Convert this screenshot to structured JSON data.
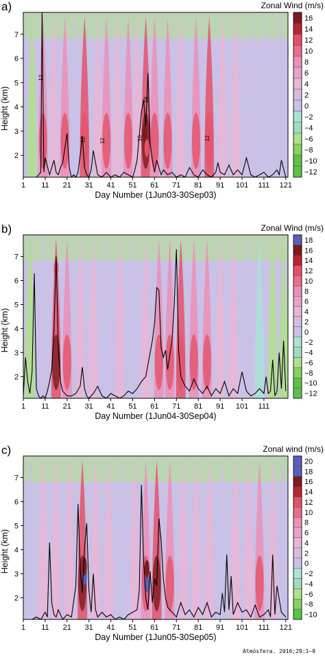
{
  "palette": {
    "green_dark": "#5cc24a",
    "green": "#86d35f",
    "green_light": "#b0e18a",
    "teal": "#a9e2d6",
    "lavender": "#c9c1e6",
    "pink_light": "#e7b6d5",
    "pink": "#ec8fb7",
    "red": "#e4526a",
    "dark_red": "#7e1a1f",
    "blue": "#5b5fb8",
    "line": "#000000"
  },
  "chart_data": [
    {
      "type": "heatmap",
      "panel_label": "a)",
      "title": "Zonal Wind (m/s)",
      "xlabel": "Day Number (1Jun03-30Sep03)",
      "ylabel": "Height (km)",
      "xlim": [
        1,
        122
      ],
      "ylim": [
        1.1,
        7.9
      ],
      "xticks": [
        "1",
        "11",
        "21",
        "31",
        "41",
        "51",
        "61",
        "71",
        "81",
        "91",
        "101",
        "111",
        "121"
      ],
      "yticks": [
        "2",
        "3",
        "4",
        "5",
        "6",
        "7"
      ],
      "colorbar_ticks": [
        "16",
        "14",
        "12",
        "10",
        "8",
        "6",
        "4",
        "2",
        "0",
        "−2",
        "−4",
        "−6",
        "−8",
        "−10",
        "−12"
      ],
      "contour_labels": [
        {
          "text": "12",
          "x": 10,
          "y": 5.2
        },
        {
          "text": "12",
          "x": 29,
          "y": 2.65
        },
        {
          "text": "12",
          "x": 38,
          "y": 2.6
        },
        {
          "text": "16",
          "x": 55,
          "y": 2.7
        },
        {
          "text": "16",
          "x": 58,
          "y": 4.3
        },
        {
          "text": "12",
          "x": 86,
          "y": 2.7
        }
      ],
      "wind_bands": [
        {
          "x": 5,
          "value": -6
        },
        {
          "x": 10,
          "value": 10
        },
        {
          "x": 15,
          "value": 4
        },
        {
          "x": 20,
          "value": 8
        },
        {
          "x": 25,
          "value": 2
        },
        {
          "x": 29,
          "value": 11
        },
        {
          "x": 35,
          "value": 4
        },
        {
          "x": 39,
          "value": 10
        },
        {
          "x": 44,
          "value": 6
        },
        {
          "x": 49,
          "value": 10
        },
        {
          "x": 53,
          "value": 4
        },
        {
          "x": 57,
          "value": 13
        },
        {
          "x": 61,
          "value": 8
        },
        {
          "x": 67,
          "value": 10
        },
        {
          "x": 73,
          "value": 6
        },
        {
          "x": 80,
          "value": 8
        },
        {
          "x": 86,
          "value": 11
        },
        {
          "x": 92,
          "value": 6
        },
        {
          "x": 98,
          "value": 4
        },
        {
          "x": 105,
          "value": 2
        },
        {
          "x": 112,
          "value": 0
        },
        {
          "x": 118,
          "value": 2
        }
      ],
      "max_spots": [
        {
          "x": 56.5,
          "y": 2.9,
          "value": 16
        },
        {
          "x": 57.5,
          "y": 2.3,
          "value": 14
        }
      ],
      "rain_line": {
        "x": [
          1,
          3,
          5,
          7,
          8,
          9,
          9.6,
          10.4,
          11,
          13,
          14,
          15,
          16,
          17,
          18,
          19,
          21,
          22,
          23,
          24,
          25,
          26,
          27,
          28,
          29,
          30,
          31,
          32,
          33,
          35,
          37,
          39,
          41,
          43,
          45,
          47,
          49,
          51,
          52,
          53,
          54,
          55,
          56,
          57,
          58,
          59,
          60,
          61,
          62,
          63,
          64,
          65,
          67,
          69,
          71,
          73,
          75,
          77,
          79,
          81,
          83,
          85,
          87,
          89,
          90,
          91,
          93,
          95,
          97,
          99,
          101,
          103,
          105,
          107,
          109,
          111,
          113,
          115,
          117,
          118,
          119,
          121
        ],
        "y": [
          1.1,
          1.1,
          1.1,
          1.1,
          1.2,
          1.3,
          7.9,
          1.3,
          1.9,
          1.2,
          1.5,
          1.8,
          1.3,
          1.2,
          1.5,
          1.7,
          2.9,
          1.5,
          1.1,
          1.2,
          1.1,
          1.3,
          2.0,
          2.8,
          1.5,
          1.2,
          1.1,
          1.4,
          2.2,
          1.2,
          1.1,
          1.3,
          1.1,
          1.2,
          1.1,
          1.3,
          1.2,
          1.1,
          1.4,
          1.8,
          2.8,
          3.8,
          4.3,
          3.2,
          5.4,
          2.5,
          1.8,
          1.3,
          1.8,
          1.5,
          1.2,
          1.4,
          1.2,
          1.3,
          1.1,
          1.2,
          1.1,
          1.5,
          1.2,
          1.1,
          1.4,
          1.2,
          1.1,
          1.3,
          1.7,
          1.3,
          1.2,
          1.6,
          1.2,
          1.4,
          1.2,
          1.9,
          1.2,
          1.1,
          1.2,
          1.3,
          1.1,
          1.2,
          1.4,
          1.2,
          1.8,
          1.1
        ]
      }
    },
    {
      "type": "heatmap",
      "panel_label": "b)",
      "title": "Zonal Wind (m/s)",
      "xlabel": "Day Number (1Jun04-30Sep04)",
      "ylabel": "Height (km)",
      "xlim": [
        1,
        122
      ],
      "ylim": [
        1.1,
        7.9
      ],
      "xticks": [
        "1",
        "11",
        "21",
        "31",
        "41",
        "51",
        "61",
        "71",
        "81",
        "91",
        "101",
        "111"
      ],
      "yticks": [
        "2",
        "3",
        "4",
        "5",
        "6",
        "7"
      ],
      "colorbar_ticks": [
        "18",
        "16",
        "14",
        "12",
        "10",
        "8",
        "6",
        "4",
        "2",
        "0",
        "−2",
        "−4",
        "−6",
        "−8",
        "−10",
        "−12"
      ],
      "contour_labels": [],
      "wind_bands": [
        {
          "x": 4,
          "value": -4
        },
        {
          "x": 10,
          "value": 2
        },
        {
          "x": 16,
          "value": 13
        },
        {
          "x": 21,
          "value": 8
        },
        {
          "x": 27,
          "value": 4
        },
        {
          "x": 33,
          "value": 6
        },
        {
          "x": 39,
          "value": 2
        },
        {
          "x": 45,
          "value": 4
        },
        {
          "x": 51,
          "value": 2
        },
        {
          "x": 57,
          "value": 6
        },
        {
          "x": 63,
          "value": 8
        },
        {
          "x": 68,
          "value": 10
        },
        {
          "x": 73,
          "value": 11
        },
        {
          "x": 79,
          "value": 10
        },
        {
          "x": 85,
          "value": 8
        },
        {
          "x": 91,
          "value": 6
        },
        {
          "x": 97,
          "value": 4
        },
        {
          "x": 103,
          "value": 0
        },
        {
          "x": 109,
          "value": -2
        },
        {
          "x": 115,
          "value": -4
        },
        {
          "x": 120,
          "value": -6
        }
      ],
      "max_spots": [
        {
          "x": 16,
          "y": 6.5,
          "value": 14
        }
      ],
      "rain_line": {
        "x": [
          1,
          2,
          3,
          4,
          5,
          6,
          7,
          8,
          9,
          10,
          11,
          12,
          13,
          14,
          15,
          16,
          17,
          18,
          19,
          20,
          21,
          23,
          25,
          27,
          28,
          29,
          30,
          31,
          33,
          35,
          37,
          39,
          41,
          43,
          45,
          47,
          49,
          51,
          53,
          55,
          57,
          58,
          59,
          60,
          61,
          62,
          63,
          64,
          65,
          66,
          67,
          69,
          70,
          71,
          72,
          73,
          75,
          77,
          79,
          81,
          83,
          85,
          87,
          89,
          91,
          93,
          95,
          97,
          99,
          101,
          103,
          105,
          107,
          109,
          111,
          112,
          113,
          114,
          115,
          116,
          117,
          118,
          119,
          120,
          121
        ],
        "y": [
          1.2,
          2.8,
          1.8,
          1.3,
          2.2,
          6.3,
          1.5,
          1.2,
          1.1,
          1.2,
          1.1,
          1.4,
          1.8,
          2.3,
          3.9,
          7.0,
          3.2,
          1.8,
          1.4,
          1.3,
          1.2,
          1.2,
          1.3,
          1.6,
          2.4,
          1.5,
          1.2,
          1.1,
          1.3,
          1.6,
          1.2,
          1.1,
          1.3,
          1.2,
          1.1,
          1.2,
          1.4,
          1.3,
          1.5,
          1.8,
          2.0,
          2.5,
          3.0,
          3.5,
          4.2,
          5.7,
          5.6,
          3.2,
          2.8,
          3.1,
          2.3,
          3.5,
          5.0,
          7.3,
          3.1,
          2.0,
          1.6,
          1.4,
          1.9,
          1.5,
          1.3,
          1.6,
          1.2,
          1.5,
          1.3,
          1.8,
          1.2,
          1.5,
          1.3,
          2.2,
          1.4,
          1.2,
          1.3,
          1.5,
          1.3,
          2.0,
          1.3,
          1.4,
          2.7,
          1.2,
          1.4,
          3.0,
          1.5,
          3.5,
          1.4
        ]
      }
    },
    {
      "type": "heatmap",
      "panel_label": "c)",
      "title": "Zonal wind (m/s)",
      "xlabel": "Day Number (1Jun05-30Sep05)",
      "ylabel": "Height (km)",
      "xlim": [
        1,
        122
      ],
      "ylim": [
        1.1,
        7.9
      ],
      "xticks": [
        "1",
        "11",
        "21",
        "31",
        "41",
        "51",
        "61",
        "71",
        "81",
        "91",
        "101",
        "111",
        "121"
      ],
      "yticks": [
        "2",
        "3",
        "4",
        "5",
        "6",
        "7"
      ],
      "colorbar_ticks": [
        "20",
        "18",
        "16",
        "14",
        "12",
        "10",
        "8",
        "6",
        "4",
        "2",
        "0",
        "−2",
        "−4",
        "−6",
        "−8",
        "−10"
      ],
      "contour_labels": [],
      "wind_bands": [
        {
          "x": 4,
          "value": 2
        },
        {
          "x": 10,
          "value": 6
        },
        {
          "x": 16,
          "value": 4
        },
        {
          "x": 22,
          "value": 6
        },
        {
          "x": 28,
          "value": 14
        },
        {
          "x": 34,
          "value": 6
        },
        {
          "x": 40,
          "value": 4
        },
        {
          "x": 46,
          "value": 2
        },
        {
          "x": 52,
          "value": 4
        },
        {
          "x": 57,
          "value": 10
        },
        {
          "x": 62,
          "value": 12
        },
        {
          "x": 68,
          "value": 8
        },
        {
          "x": 74,
          "value": 6
        },
        {
          "x": 80,
          "value": 4
        },
        {
          "x": 86,
          "value": 6
        },
        {
          "x": 92,
          "value": 2
        },
        {
          "x": 98,
          "value": 6
        },
        {
          "x": 104,
          "value": 4
        },
        {
          "x": 109,
          "value": 10
        },
        {
          "x": 115,
          "value": 4
        },
        {
          "x": 120,
          "value": 2
        }
      ],
      "max_spots": [
        {
          "x": 29,
          "y": 2.9,
          "value": 20
        },
        {
          "x": 29,
          "y": 3.3,
          "value": 18
        },
        {
          "x": 57.5,
          "y": 2.6,
          "value": 20
        },
        {
          "x": 57.5,
          "y": 3.2,
          "value": 18
        }
      ],
      "rain_line": {
        "x": [
          1,
          3,
          5,
          7,
          9,
          11,
          12,
          13,
          14,
          15,
          16,
          17,
          19,
          21,
          23,
          25,
          26,
          27,
          28,
          29,
          30,
          31,
          32,
          33,
          34,
          35,
          37,
          39,
          41,
          43,
          45,
          47,
          49,
          51,
          53,
          54,
          55,
          56,
          57,
          58,
          59,
          60,
          61,
          62,
          63,
          64,
          65,
          66,
          67,
          69,
          71,
          73,
          75,
          77,
          79,
          81,
          83,
          85,
          87,
          89,
          91,
          92,
          93,
          94,
          95,
          96,
          97,
          99,
          101,
          103,
          105,
          107,
          109,
          111,
          113,
          114,
          115,
          116,
          117,
          119,
          121
        ],
        "y": [
          1.1,
          1.1,
          1.1,
          1.2,
          1.1,
          1.4,
          1.2,
          4.3,
          1.8,
          1.3,
          1.2,
          1.5,
          1.1,
          1.3,
          1.2,
          2.5,
          5.9,
          3.2,
          2.2,
          4.1,
          5.1,
          2.3,
          1.4,
          3.0,
          1.5,
          1.2,
          1.4,
          1.2,
          1.3,
          1.1,
          1.2,
          1.1,
          1.3,
          1.4,
          1.5,
          2.3,
          6.7,
          3.5,
          2.0,
          1.5,
          3.1,
          1.8,
          2.8,
          2.5,
          5.3,
          4.4,
          2.8,
          2.0,
          1.6,
          1.4,
          1.2,
          1.8,
          1.3,
          1.5,
          1.2,
          1.6,
          1.3,
          1.8,
          1.2,
          1.4,
          1.3,
          2.2,
          1.4,
          3.8,
          1.5,
          2.9,
          1.3,
          1.8,
          1.4,
          1.5,
          1.2,
          1.7,
          1.2,
          1.3,
          1.5,
          1.2,
          3.8,
          1.3,
          2.5,
          1.4,
          1.2
        ]
      }
    }
  ],
  "credit": "Atmósfera. 2016;29:1–9"
}
